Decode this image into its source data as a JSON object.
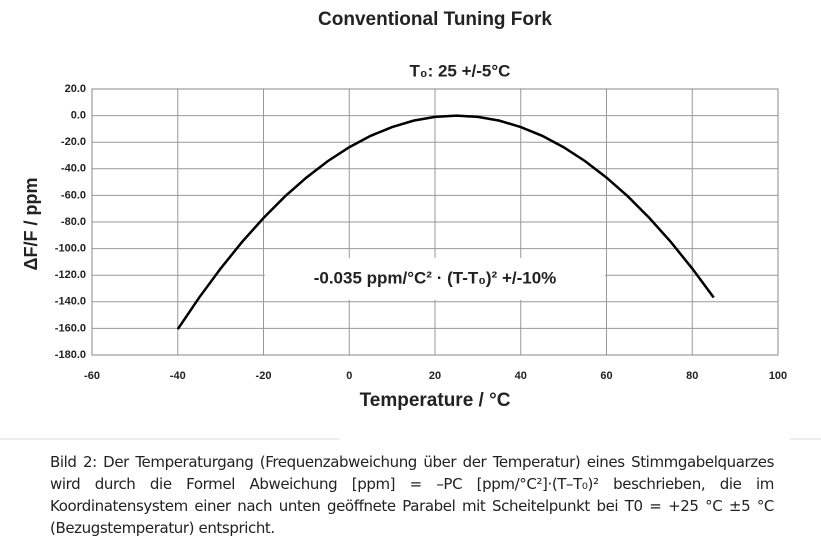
{
  "chart_data": {
    "type": "line",
    "title": "Conventional Tuning Fork",
    "subtitle": "T₀: 25 +/-5°C",
    "annotation": "-0.035 ppm/°C² · (T-T₀)²   +/-10%",
    "x_label": "Temperature / °C",
    "y_label": "ΔF/F / ppm",
    "x": [
      -40,
      -35,
      -30,
      -25,
      -20,
      -15,
      -10,
      -5,
      0,
      5,
      10,
      15,
      20,
      25,
      30,
      35,
      40,
      45,
      50,
      55,
      60,
      65,
      70,
      75,
      80,
      85
    ],
    "values": [
      -160.6,
      -136.8,
      -115.0,
      -95.0,
      -77.0,
      -60.8,
      -46.6,
      -34.2,
      -23.8,
      -15.2,
      -8.6,
      -3.8,
      -1.0,
      0,
      -1.0,
      -3.8,
      -8.6,
      -15.2,
      -23.8,
      -34.2,
      -46.6,
      -60.8,
      -77.0,
      -95.0,
      -115.0,
      -136.8
    ],
    "color": "#000000",
    "xlim": [
      -60,
      100
    ],
    "xticks": [
      -60,
      -40,
      -20,
      0,
      20,
      40,
      60,
      80,
      100
    ],
    "ylim": [
      -180,
      20
    ],
    "yticks": [
      {
        "value": 20,
        "label": "20.0"
      },
      {
        "value": 0,
        "label": "0.0"
      },
      {
        "value": -20,
        "label": "-20.0"
      },
      {
        "value": -40,
        "label": "-40.0"
      },
      {
        "value": -60,
        "label": "-60.0"
      },
      {
        "value": -80,
        "label": "-80.0"
      },
      {
        "value": -100,
        "label": "-100.0"
      },
      {
        "value": -120,
        "label": "-120.0"
      },
      {
        "value": -140,
        "label": "-140.0"
      },
      {
        "value": -160,
        "label": "-160.0"
      },
      {
        "value": -180,
        "label": "-180.0"
      }
    ],
    "grid": true
  },
  "caption": "Bild 2: Der Temperaturgang (Frequenzabweichung über der Temperatur) eines Stimmgabelquarzes wird durch die Formel Abweichung [ppm] = –PC [ppm/°C²]·(T–T₀)² beschrieben, die im Koordinatensystem einer nach unten geöffnete Parabel mit Scheitelpunkt bei T0 = +25 °C ±5 °C (Bezugstemperatur) entspricht."
}
